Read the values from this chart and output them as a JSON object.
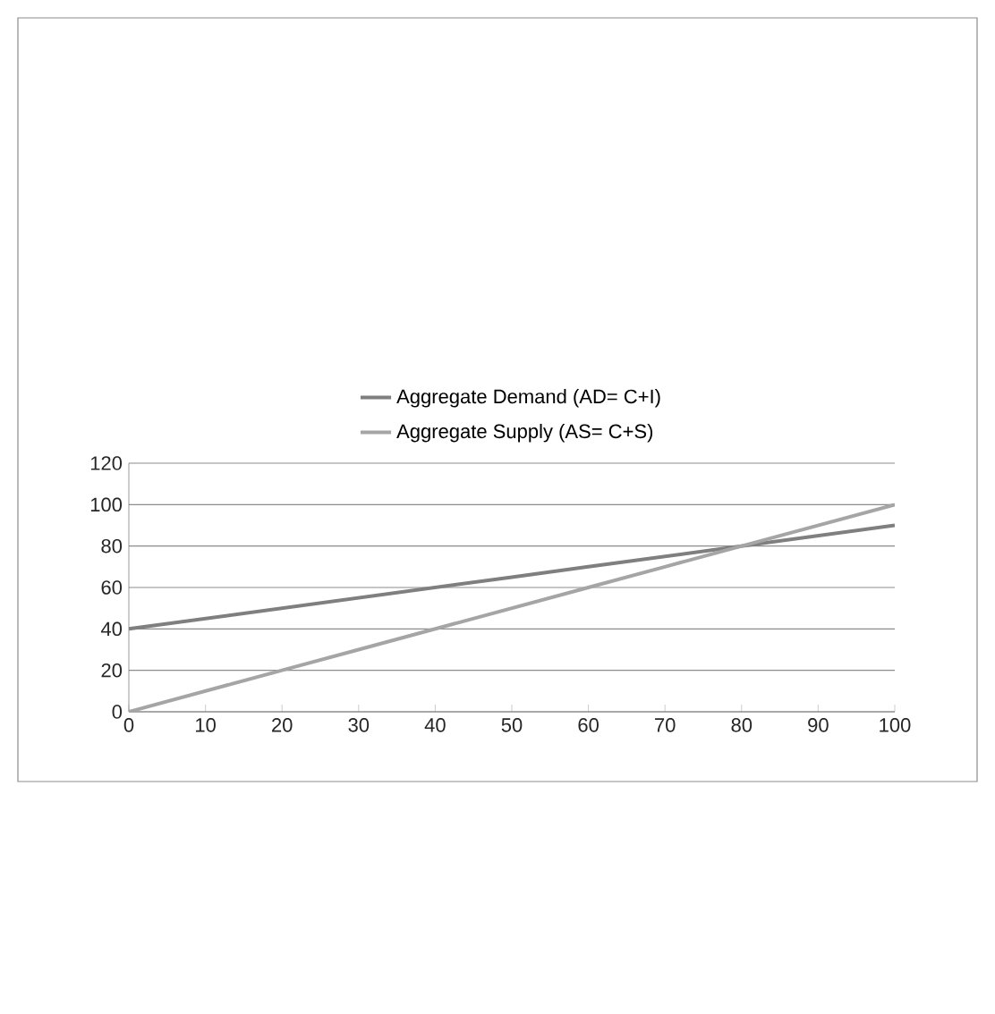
{
  "chart_data": {
    "type": "line",
    "x": [
      0,
      10,
      20,
      30,
      40,
      50,
      60,
      70,
      80,
      90,
      100
    ],
    "series": [
      {
        "name": "Aggregate Demand (AD= C+I)",
        "color": "#7f7f7f",
        "values": [
          40,
          45,
          50,
          55,
          60,
          65,
          70,
          75,
          80,
          85,
          90
        ]
      },
      {
        "name": "Aggregate Supply (AS= C+S)",
        "color": "#a5a5a5",
        "values": [
          0,
          10,
          20,
          30,
          40,
          50,
          60,
          70,
          80,
          90,
          100
        ]
      }
    ],
    "xlim": [
      0,
      100
    ],
    "xticks": [
      0,
      10,
      20,
      30,
      40,
      50,
      60,
      70,
      80,
      90,
      100
    ],
    "ylim": [
      0,
      120
    ],
    "yticks": [
      0,
      20,
      40,
      60,
      80,
      100,
      120
    ],
    "grid": "y",
    "legend": "top",
    "marker": "none",
    "line_style": "solid"
  }
}
